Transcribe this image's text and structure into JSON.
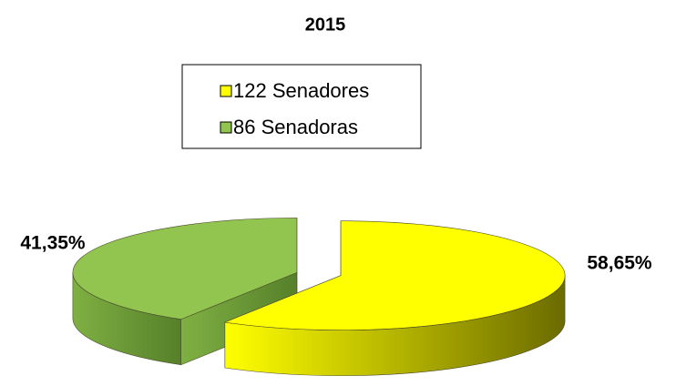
{
  "chart_data": {
    "type": "pie3d",
    "title": "2015",
    "categories": [
      "122 Senadores",
      "86 Senadoras"
    ],
    "values": [
      58.65,
      41.35
    ],
    "value_labels": [
      "58,65%",
      "41,35%"
    ],
    "colors": [
      "#ffff00",
      "#92c450"
    ],
    "legend": "top"
  }
}
